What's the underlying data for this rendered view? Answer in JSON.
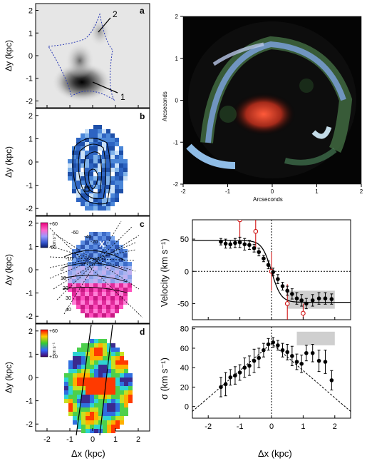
{
  "panels": {
    "a": {
      "letter": "a",
      "label_1": "1",
      "label_2": "2"
    },
    "b": {
      "letter": "b"
    },
    "c": {
      "letter": "c",
      "cbar_max": "+60",
      "cbar_min": "-60",
      "cbar_unit": "km s⁻¹",
      "contour_labels": [
        "-60",
        "-40",
        "-20",
        "-10",
        "0",
        "10",
        "20",
        "30",
        "40"
      ]
    },
    "d": {
      "letter": "d",
      "cbar_max": "+60",
      "cbar_min": "+10",
      "cbar_unit": "km s⁻¹"
    }
  },
  "left_axes": {
    "ylabel": "Δy (kpc)",
    "xlabel": "Δx (kpc)",
    "y_ticks": [
      "2",
      "1",
      "0",
      "-1",
      "-2"
    ],
    "x_ticks": [
      "-2",
      "-1",
      "0",
      "1",
      "2"
    ]
  },
  "image_panel": {
    "ylabel": "Arcseconds",
    "xlabel": "Arcseconds",
    "y_ticks": [
      "2",
      "1",
      "0",
      "-1",
      "-2"
    ],
    "x_ticks": [
      "-2",
      "-1",
      "0",
      "1",
      "2"
    ]
  },
  "chart_data": [
    {
      "type": "scatter",
      "ylabel": "Velocity (km s⁻¹)",
      "xlabel": "",
      "xlim": [
        -2.5,
        2.5
      ],
      "ylim": [
        -75,
        80
      ],
      "y_ticks": [
        50,
        0,
        -50
      ],
      "x": [
        -1.6,
        -1.45,
        -1.3,
        -1.15,
        -1.0,
        -0.85,
        -0.7,
        -0.55,
        -0.4,
        -0.25,
        -0.1,
        0.05,
        0.2,
        0.35,
        0.5,
        0.65,
        0.8,
        0.95,
        1.1,
        1.3,
        1.5,
        1.7,
        1.9
      ],
      "y": [
        46,
        43,
        42,
        44,
        45,
        42,
        41,
        36,
        30,
        20,
        10,
        -1,
        -12,
        -23,
        -30,
        -35,
        -42,
        -45,
        -50,
        -45,
        -42,
        -42,
        -43
      ],
      "err": [
        5,
        7,
        6,
        7,
        8,
        9,
        7,
        6,
        6,
        5,
        6,
        6,
        7,
        6,
        7,
        8,
        9,
        9,
        8,
        9,
        9,
        9,
        8
      ],
      "red_points": {
        "x": [
          -1.0,
          -0.5,
          0.0,
          0.5,
          1.0
        ],
        "y": [
          80,
          62,
          0,
          -50,
          -65
        ],
        "err": [
          30,
          25,
          30,
          30,
          15
        ]
      },
      "model_curve": "tanh",
      "shaded_band": {
        "x": [
          0.5,
          2.0
        ],
        "y": [
          -58,
          -30
        ]
      }
    },
    {
      "type": "scatter",
      "ylabel": "σ (km s⁻¹)",
      "xlabel": "Δx (kpc)",
      "xlim": [
        -2.5,
        2.5
      ],
      "ylim": [
        -12,
        82
      ],
      "y_ticks": [
        80,
        60,
        40,
        20,
        0
      ],
      "x_ticks": [
        -2,
        -1,
        0,
        1,
        2
      ],
      "x": [
        -1.6,
        -1.45,
        -1.3,
        -1.15,
        -1.0,
        -0.85,
        -0.7,
        -0.55,
        -0.4,
        -0.25,
        -0.1,
        0.05,
        0.2,
        0.35,
        0.5,
        0.65,
        0.8,
        0.95,
        1.1,
        1.3,
        1.5,
        1.7,
        1.9
      ],
      "y": [
        20,
        23,
        30,
        32,
        35,
        40,
        42,
        47,
        50,
        58,
        64,
        66,
        63,
        58,
        56,
        52,
        46,
        44,
        55,
        55,
        47,
        46,
        27
      ],
      "err": [
        10,
        12,
        8,
        9,
        8,
        10,
        10,
        12,
        10,
        7,
        6,
        5,
        5,
        7,
        8,
        10,
        8,
        9,
        8,
        9,
        11,
        12,
        10
      ],
      "model_curve": "dotted triangle, peak 65 at x=0",
      "shaded_band": {
        "x": [
          0.8,
          2.0
        ],
        "y": [
          63,
          77
        ]
      }
    }
  ]
}
